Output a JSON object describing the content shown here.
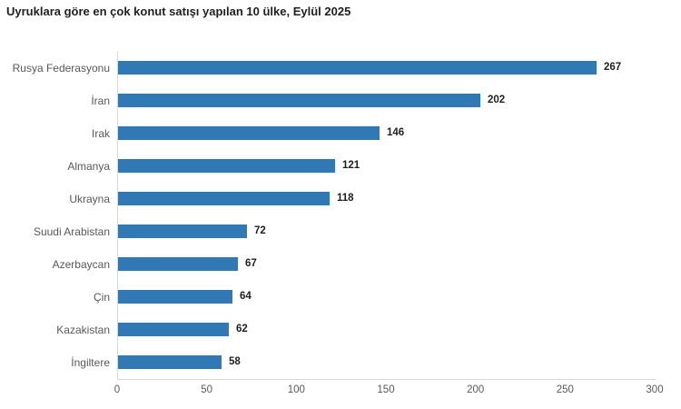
{
  "title": "Uyruklara göre en çok konut satışı yapılan 10 ülke, Eylül 2025",
  "colors": {
    "bar": "#3179b5",
    "axis_line": "#d9d9d9",
    "category_label": "#595959",
    "value_label": "#1f1f1f",
    "title": "#1f1f1f",
    "background": "#ffffff"
  },
  "chart_data": {
    "type": "bar",
    "orientation": "horizontal",
    "title": "Uyruklara göre en çok konut satışı yapılan 10 ülke, Eylül 2025",
    "categories": [
      "Rusya Federasyonu",
      "İran",
      "Irak",
      "Almanya",
      "Ukrayna",
      "Suudi Arabistan",
      "Azerbaycan",
      "Çin",
      "Kazakistan",
      "İngiltere"
    ],
    "values": [
      267,
      202,
      146,
      121,
      118,
      72,
      67,
      64,
      62,
      58
    ],
    "xlabel": "",
    "ylabel": "",
    "xlim": [
      0,
      300
    ],
    "x_ticks": [
      0,
      50,
      100,
      150,
      200,
      250,
      300
    ],
    "grid": false,
    "legend": "none",
    "value_labels_shown": true
  }
}
